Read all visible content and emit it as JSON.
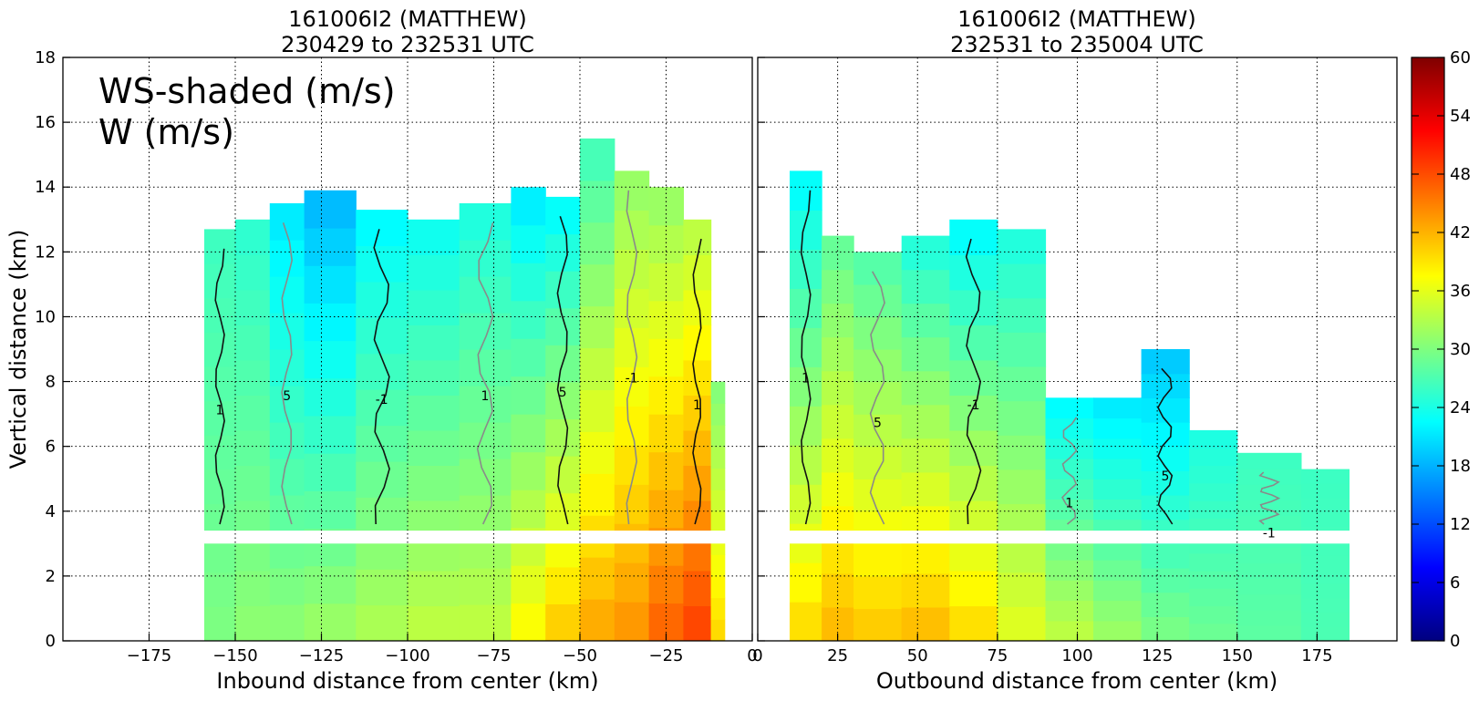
{
  "chart_data": [
    {
      "type": "heatmap",
      "title": "161006I2 (MATTHEW)",
      "subtitle": "230429 to 232531 UTC",
      "xlabel": "Inbound distance from center (km)",
      "ylabel": "Vertical distance (km)",
      "annotation": [
        "WS-shaded (m/s)",
        "W (m/s)"
      ],
      "xlim": [
        -200,
        0
      ],
      "ylim": [
        0,
        18
      ],
      "xticks": [
        "−175",
        "−150",
        "−125",
        "−100",
        "−75",
        "−50",
        "−25",
        "0"
      ],
      "yticks": [
        "0",
        "2",
        "4",
        "6",
        "8",
        "10",
        "12",
        "14",
        "16",
        "18"
      ],
      "grid": true,
      "contour_labels": [
        "1",
        "-1",
        "5"
      ],
      "columns": [
        {
          "x0": -159,
          "x1": -150,
          "top": 12.7,
          "ws_low": 30,
          "ws_high": 26
        },
        {
          "x0": -150,
          "x1": -140,
          "top": 13.0,
          "ws_low": 31,
          "ws_high": 25
        },
        {
          "x0": -140,
          "x1": -130,
          "top": 13.5,
          "ws_low": 31,
          "ws_high": 21
        },
        {
          "x0": -130,
          "x1": -115,
          "top": 13.9,
          "ws_low": 32,
          "ws_high": 18
        },
        {
          "x0": -115,
          "x1": -100,
          "top": 13.3,
          "ws_low": 33,
          "ws_high": 22
        },
        {
          "x0": -100,
          "x1": -85,
          "top": 13.0,
          "ws_low": 34,
          "ws_high": 23
        },
        {
          "x0": -85,
          "x1": -70,
          "top": 13.5,
          "ws_low": 34,
          "ws_high": 24
        },
        {
          "x0": -70,
          "x1": -60,
          "top": 14.0,
          "ws_low": 38,
          "ws_high": 21
        },
        {
          "x0": -60,
          "x1": -50,
          "top": 13.7,
          "ws_low": 41,
          "ws_high": 22
        },
        {
          "x0": -50,
          "x1": -40,
          "top": 15.5,
          "ws_low": 43,
          "ws_high": 26
        },
        {
          "x0": -40,
          "x1": -30,
          "top": 14.5,
          "ws_low": 44,
          "ws_high": 31
        },
        {
          "x0": -30,
          "x1": -20,
          "top": 14.0,
          "ws_low": 47,
          "ws_high": 31
        },
        {
          "x0": -20,
          "x1": -12,
          "top": 13.0,
          "ws_low": 49,
          "ws_high": 33
        },
        {
          "x0": -12,
          "x1": -8,
          "top": 8.0,
          "ws_low": 40,
          "ws_high": 30
        }
      ]
    },
    {
      "type": "heatmap",
      "title": "161006I2 (MATTHEW)",
      "subtitle": "232531 to 235004 UTC",
      "xlabel": "Outbound distance from center (km)",
      "ylabel": "",
      "xlim": [
        0,
        200
      ],
      "ylim": [
        0,
        18
      ],
      "xticks": [
        "0",
        "25",
        "50",
        "75",
        "100",
        "125",
        "150",
        "175"
      ],
      "grid": true,
      "contour_labels": [
        "1",
        "-1",
        "5"
      ],
      "columns": [
        {
          "x0": 10,
          "x1": 20,
          "top": 14.5,
          "ws_low": 40,
          "ws_high": 22
        },
        {
          "x0": 20,
          "x1": 30,
          "top": 12.5,
          "ws_low": 42,
          "ws_high": 28
        },
        {
          "x0": 30,
          "x1": 45,
          "top": 12.0,
          "ws_low": 41,
          "ws_high": 27
        },
        {
          "x0": 45,
          "x1": 60,
          "top": 12.5,
          "ws_low": 42,
          "ws_high": 24
        },
        {
          "x0": 60,
          "x1": 75,
          "top": 13.0,
          "ws_low": 40,
          "ws_high": 22
        },
        {
          "x0": 75,
          "x1": 90,
          "top": 12.7,
          "ws_low": 36,
          "ws_high": 24
        },
        {
          "x0": 90,
          "x1": 105,
          "top": 7.5,
          "ws_low": 34,
          "ws_high": 22
        },
        {
          "x0": 105,
          "x1": 120,
          "top": 7.5,
          "ws_low": 32,
          "ws_high": 21
        },
        {
          "x0": 120,
          "x1": 135,
          "top": 9.0,
          "ws_low": 30,
          "ws_high": 19
        },
        {
          "x0": 135,
          "x1": 150,
          "top": 6.5,
          "ws_low": 29,
          "ws_high": 24
        },
        {
          "x0": 150,
          "x1": 170,
          "top": 5.8,
          "ws_low": 28,
          "ws_high": 26
        },
        {
          "x0": 170,
          "x1": 185,
          "top": 5.3,
          "ws_low": 27,
          "ws_high": 26
        }
      ]
    }
  ],
  "colorbar": {
    "min": 0,
    "max": 60,
    "ticks": [
      "0",
      "6",
      "12",
      "18",
      "24",
      "30",
      "36",
      "42",
      "48",
      "54",
      "60"
    ],
    "colormap": [
      "#00007f",
      "#0000ff",
      "#007fff",
      "#00ffff",
      "#7fff7f",
      "#ffff00",
      "#ff7f00",
      "#ff0000",
      "#7f0000"
    ]
  }
}
